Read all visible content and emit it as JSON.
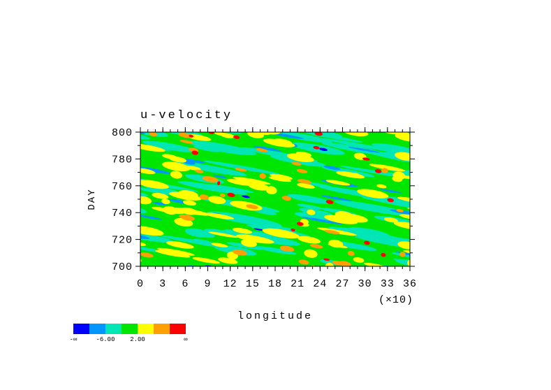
{
  "chart_data": {
    "type": "contour",
    "title": "u-velocity",
    "xlabel": "longitude",
    "ylabel": "DAY",
    "x_multiplier": "(×10)",
    "xlim": [
      0,
      36
    ],
    "xticks": [
      0,
      3,
      6,
      9,
      12,
      15,
      18,
      21,
      24,
      27,
      30,
      33,
      36
    ],
    "ylim": [
      700,
      800
    ],
    "yticks": [
      700,
      720,
      740,
      760,
      780,
      800
    ],
    "colorbar": {
      "colors": [
        "#0000ff",
        "#0096ff",
        "#00e6b4",
        "#00e600",
        "#ffff00",
        "#ffa000",
        "#ff0000"
      ],
      "labels": [
        "-∞",
        null,
        "-6.00",
        null,
        "2.00",
        null,
        null,
        "∞"
      ]
    }
  }
}
